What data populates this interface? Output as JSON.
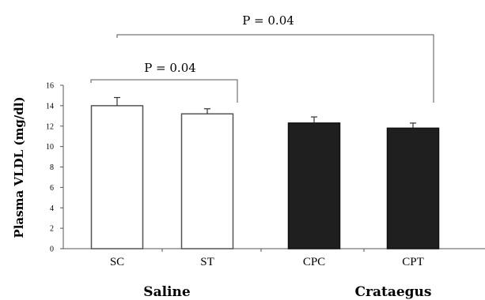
{
  "chart_data": {
    "type": "bar",
    "ylabel": "Plasma VLDL (mg/dl)",
    "ylim": [
      0,
      16
    ],
    "yticks": [
      0,
      2,
      4,
      6,
      8,
      10,
      12,
      14,
      16
    ],
    "categories": [
      "SC",
      "ST",
      "CPC",
      "CPT"
    ],
    "values": [
      14.0,
      13.2,
      12.3,
      11.8
    ],
    "errors": [
      0.8,
      0.5,
      0.6,
      0.5
    ],
    "bar_fill": [
      "#ffffff",
      "#ffffff",
      "#1f1f1f",
      "#1f1f1f"
    ],
    "groups": [
      {
        "label": "Saline",
        "categories": [
          "SC",
          "ST"
        ]
      },
      {
        "label": "Crataegus",
        "categories": [
          "CPC",
          "CPT"
        ]
      }
    ],
    "comparisons": [
      {
        "from": "SC",
        "to": "ST",
        "label": "P = 0.04"
      },
      {
        "from": "SC",
        "to": "CPT",
        "label": "P = 0.04"
      }
    ],
    "grid": false,
    "legend": "none"
  }
}
